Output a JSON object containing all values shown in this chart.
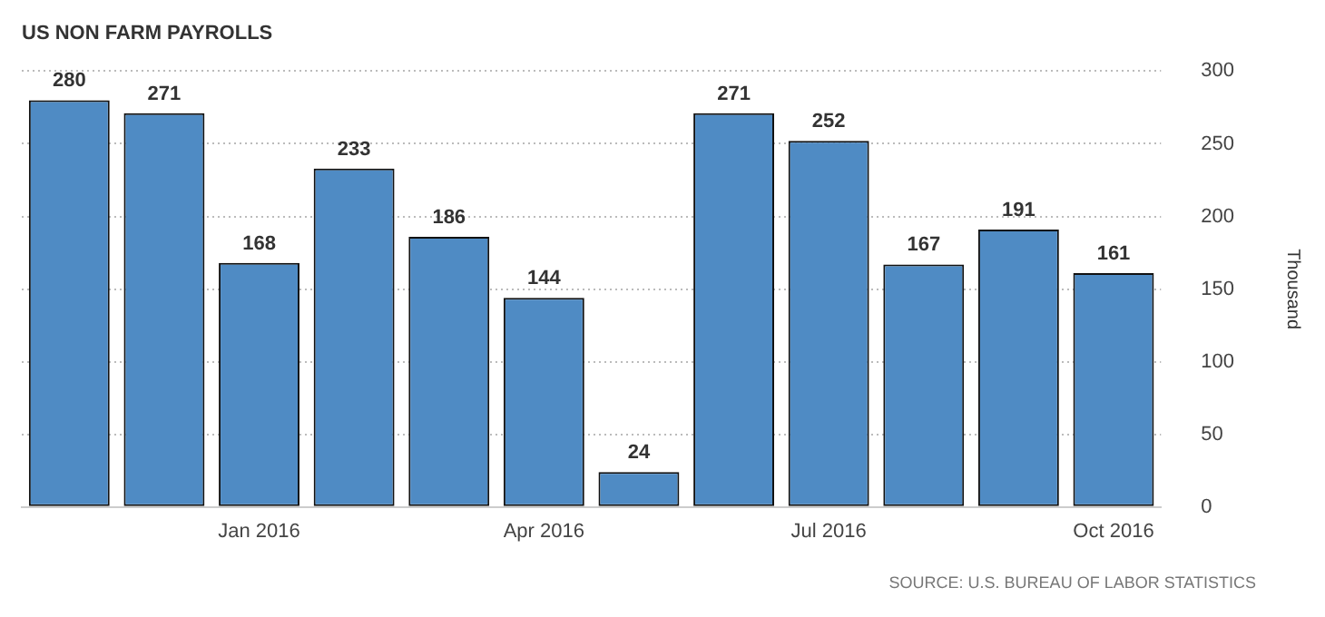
{
  "chart_data": {
    "type": "bar",
    "title": "US NON FARM PAYROLLS",
    "ylabel": "Thousand",
    "categories": [
      null,
      null,
      "Jan 2016",
      null,
      null,
      "Apr 2016",
      null,
      null,
      "Jul 2016",
      null,
      null,
      "Oct 2016"
    ],
    "values": [
      280,
      271,
      168,
      233,
      186,
      144,
      24,
      271,
      252,
      167,
      191,
      161
    ],
    "color": "#4f8bc4",
    "ylim": [
      0,
      300
    ],
    "yticks": [
      0,
      50,
      100,
      150,
      200,
      250,
      300
    ],
    "grid": "y",
    "data_labels": true,
    "annotations": [
      "SOURCE: U.S. BUREAU OF LABOR STATISTICS"
    ]
  }
}
